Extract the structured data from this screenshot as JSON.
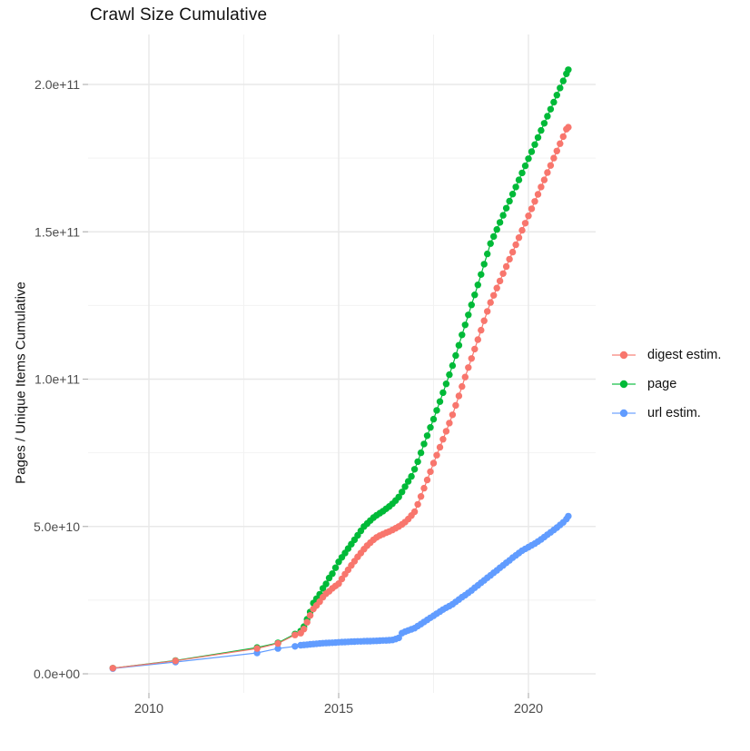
{
  "chart": {
    "title": "Crawl Size Cumulative",
    "ylabel": "Pages / Unique Items Cumulative",
    "xlabel": ""
  },
  "chart_data": {
    "type": "line",
    "title": "Crawl Size Cumulative",
    "xlabel": "",
    "ylabel": "Pages / Unique Items Cumulative",
    "xlim": [
      2008.4,
      2021.75
    ],
    "ylim": [
      0,
      218000000000.0
    ],
    "grid": true,
    "legend_position": "right",
    "x_tick_labels": [
      "2010",
      "2015",
      "2020"
    ],
    "x_ticks": [
      2010,
      2015,
      2020
    ],
    "x_minor_gridlines": [
      2012.5,
      2017.5
    ],
    "y_tick_labels": [
      "0.0e+00",
      "5.0e+10",
      "1.0e+11",
      "1.5e+11",
      "2.0e+11"
    ],
    "y_ticks": [
      0,
      50000000000.0,
      100000000000.0,
      150000000000.0,
      200000000000.0
    ],
    "y_minor_gridlines": [
      25000000000.0,
      75000000000.0,
      125000000000.0,
      175000000000.0
    ],
    "y_unit_of_point_values": 1000000000.0,
    "series": [
      {
        "name": "digest estim.",
        "color": "#F8766D",
        "points": [
          [
            2009.05,
            1.9
          ],
          [
            2010.7,
            4.4
          ],
          [
            2012.85,
            8.6
          ],
          [
            2013.4,
            10.3
          ],
          [
            2013.85,
            13.2
          ],
          [
            2014.0,
            13.8
          ],
          [
            2014.083,
            15.2
          ],
          [
            2014.167,
            17.5
          ],
          [
            2014.25,
            19.8
          ],
          [
            2014.333,
            22
          ],
          [
            2014.417,
            23.2
          ],
          [
            2014.5,
            24.5
          ],
          [
            2014.583,
            26
          ],
          [
            2014.667,
            27.2
          ],
          [
            2014.75,
            28
          ],
          [
            2014.833,
            29
          ],
          [
            2014.917,
            29.8
          ],
          [
            2015.0,
            30.6
          ],
          [
            2015.083,
            32.2
          ],
          [
            2015.167,
            33.8
          ],
          [
            2015.25,
            35.3
          ],
          [
            2015.333,
            36.8
          ],
          [
            2015.417,
            38.2
          ],
          [
            2015.5,
            39.7
          ],
          [
            2015.583,
            41
          ],
          [
            2015.667,
            42.3
          ],
          [
            2015.75,
            43.5
          ],
          [
            2015.833,
            44.5
          ],
          [
            2015.917,
            45.5
          ],
          [
            2016.0,
            46.3
          ],
          [
            2016.083,
            46.9
          ],
          [
            2016.167,
            47.4
          ],
          [
            2016.25,
            47.9
          ],
          [
            2016.333,
            48.3
          ],
          [
            2016.417,
            48.8
          ],
          [
            2016.5,
            49.4
          ],
          [
            2016.583,
            50
          ],
          [
            2016.667,
            50.7
          ],
          [
            2016.75,
            51.5
          ],
          [
            2016.833,
            52.5
          ],
          [
            2016.917,
            53.7
          ],
          [
            2017.0,
            55
          ],
          [
            2017.083,
            57.5
          ],
          [
            2017.167,
            60.2
          ],
          [
            2017.25,
            63
          ],
          [
            2017.333,
            65.8
          ],
          [
            2017.417,
            68.6
          ],
          [
            2017.5,
            71.5
          ],
          [
            2017.583,
            74.2
          ],
          [
            2017.667,
            76.9
          ],
          [
            2017.75,
            79.6
          ],
          [
            2017.833,
            82.3
          ],
          [
            2017.917,
            85.1
          ],
          [
            2018.0,
            87.9
          ],
          [
            2018.083,
            91.1
          ],
          [
            2018.167,
            94.3
          ],
          [
            2018.25,
            97.5
          ],
          [
            2018.333,
            100.7
          ],
          [
            2018.417,
            103.9
          ],
          [
            2018.5,
            107
          ],
          [
            2018.583,
            110.2
          ],
          [
            2018.667,
            113.4
          ],
          [
            2018.75,
            116.6
          ],
          [
            2018.833,
            119.8
          ],
          [
            2018.917,
            123
          ],
          [
            2019.0,
            126
          ],
          [
            2019.083,
            128.4
          ],
          [
            2019.167,
            130.9
          ],
          [
            2019.25,
            133.3
          ],
          [
            2019.333,
            135.8
          ],
          [
            2019.417,
            138.2
          ],
          [
            2019.5,
            140.7
          ],
          [
            2019.583,
            143.1
          ],
          [
            2019.667,
            145.6
          ],
          [
            2019.75,
            148
          ],
          [
            2019.833,
            150.5
          ],
          [
            2019.917,
            152.9
          ],
          [
            2020.0,
            155.4
          ],
          [
            2020.083,
            157.8
          ],
          [
            2020.167,
            160.3
          ],
          [
            2020.25,
            162.7
          ],
          [
            2020.333,
            165.2
          ],
          [
            2020.417,
            167.6
          ],
          [
            2020.5,
            170.1
          ],
          [
            2020.583,
            172.5
          ],
          [
            2020.667,
            175
          ],
          [
            2020.75,
            177.4
          ],
          [
            2020.833,
            179.9
          ],
          [
            2020.917,
            182.3
          ],
          [
            2021.0,
            184.8
          ],
          [
            2021.05,
            185.5
          ]
        ]
      },
      {
        "name": "page",
        "color": "#00BA38",
        "points": [
          [
            2009.05,
            1.9
          ],
          [
            2010.7,
            4.5
          ],
          [
            2012.85,
            8.9
          ],
          [
            2013.4,
            10.5
          ],
          [
            2013.85,
            13.5
          ],
          [
            2014.0,
            14.5
          ],
          [
            2014.083,
            16
          ],
          [
            2014.167,
            18.5
          ],
          [
            2014.25,
            21
          ],
          [
            2014.333,
            24
          ],
          [
            2014.417,
            25.5
          ],
          [
            2014.5,
            27
          ],
          [
            2014.583,
            29
          ],
          [
            2014.667,
            30.5
          ],
          [
            2014.75,
            32.5
          ],
          [
            2014.833,
            34
          ],
          [
            2014.917,
            36
          ],
          [
            2015.0,
            38
          ],
          [
            2015.083,
            39.5
          ],
          [
            2015.167,
            41
          ],
          [
            2015.25,
            42.5
          ],
          [
            2015.333,
            44
          ],
          [
            2015.417,
            45.5
          ],
          [
            2015.5,
            47
          ],
          [
            2015.583,
            48.5
          ],
          [
            2015.667,
            50
          ],
          [
            2015.75,
            51
          ],
          [
            2015.833,
            52
          ],
          [
            2015.917,
            53
          ],
          [
            2016.0,
            53.8
          ],
          [
            2016.083,
            54.5
          ],
          [
            2016.167,
            55.2
          ],
          [
            2016.25,
            56
          ],
          [
            2016.333,
            56.8
          ],
          [
            2016.417,
            57.7
          ],
          [
            2016.5,
            58.8
          ],
          [
            2016.583,
            60
          ],
          [
            2016.667,
            61.7
          ],
          [
            2016.75,
            63.5
          ],
          [
            2016.833,
            65.3
          ],
          [
            2016.917,
            67
          ],
          [
            2017.0,
            69.4
          ],
          [
            2017.083,
            72
          ],
          [
            2017.167,
            75
          ],
          [
            2017.25,
            78
          ],
          [
            2017.333,
            80.8
          ],
          [
            2017.417,
            83.6
          ],
          [
            2017.5,
            86.4
          ],
          [
            2017.583,
            89.4
          ],
          [
            2017.667,
            92.4
          ],
          [
            2017.75,
            95.4
          ],
          [
            2017.833,
            98.4
          ],
          [
            2017.917,
            101.5
          ],
          [
            2018.0,
            104.6
          ],
          [
            2018.083,
            108
          ],
          [
            2018.167,
            111.5
          ],
          [
            2018.25,
            115
          ],
          [
            2018.333,
            118.4
          ],
          [
            2018.417,
            121.8
          ],
          [
            2018.5,
            125.2
          ],
          [
            2018.583,
            128.6
          ],
          [
            2018.667,
            132
          ],
          [
            2018.75,
            135.5
          ],
          [
            2018.833,
            139
          ],
          [
            2018.917,
            142.5
          ],
          [
            2019.0,
            146
          ],
          [
            2019.083,
            148.4
          ],
          [
            2019.167,
            150.8
          ],
          [
            2019.25,
            153.2
          ],
          [
            2019.333,
            155.6
          ],
          [
            2019.417,
            158
          ],
          [
            2019.5,
            160.4
          ],
          [
            2019.583,
            162.8
          ],
          [
            2019.667,
            165.2
          ],
          [
            2019.75,
            167.6
          ],
          [
            2019.833,
            170
          ],
          [
            2019.917,
            172.4
          ],
          [
            2020.0,
            174.8
          ],
          [
            2020.083,
            177.2
          ],
          [
            2020.167,
            179.6
          ],
          [
            2020.25,
            182
          ],
          [
            2020.333,
            184.4
          ],
          [
            2020.417,
            186.8
          ],
          [
            2020.5,
            189.2
          ],
          [
            2020.583,
            191.6
          ],
          [
            2020.667,
            194
          ],
          [
            2020.75,
            196.4
          ],
          [
            2020.833,
            198.8
          ],
          [
            2020.917,
            201.2
          ],
          [
            2021.0,
            203.6
          ],
          [
            2021.05,
            205
          ]
        ]
      },
      {
        "name": "url estim.",
        "color": "#619CFF",
        "points": [
          [
            2009.05,
            1.8
          ],
          [
            2010.7,
            4.0
          ],
          [
            2012.85,
            7.1
          ],
          [
            2013.4,
            8.6
          ],
          [
            2013.85,
            9.3
          ],
          [
            2014.0,
            9.7
          ],
          [
            2014.083,
            9.8
          ],
          [
            2014.167,
            9.9
          ],
          [
            2014.25,
            10.0
          ],
          [
            2014.333,
            10.1
          ],
          [
            2014.417,
            10.2
          ],
          [
            2014.5,
            10.3
          ],
          [
            2014.583,
            10.4
          ],
          [
            2014.667,
            10.45
          ],
          [
            2014.75,
            10.5
          ],
          [
            2014.833,
            10.55
          ],
          [
            2014.917,
            10.6
          ],
          [
            2015.0,
            10.7
          ],
          [
            2015.083,
            10.75
          ],
          [
            2015.167,
            10.8
          ],
          [
            2015.25,
            10.85
          ],
          [
            2015.333,
            10.9
          ],
          [
            2015.417,
            10.95
          ],
          [
            2015.5,
            11.0
          ],
          [
            2015.583,
            11.0
          ],
          [
            2015.667,
            11.05
          ],
          [
            2015.75,
            11.1
          ],
          [
            2015.833,
            11.1
          ],
          [
            2015.917,
            11.15
          ],
          [
            2016.0,
            11.2
          ],
          [
            2016.083,
            11.25
          ],
          [
            2016.167,
            11.3
          ],
          [
            2016.25,
            11.35
          ],
          [
            2016.333,
            11.4
          ],
          [
            2016.417,
            11.5
          ],
          [
            2016.5,
            11.8
          ],
          [
            2016.583,
            12.2
          ],
          [
            2016.667,
            13.8
          ],
          [
            2016.75,
            14.3
          ],
          [
            2016.833,
            14.7
          ],
          [
            2016.917,
            15.1
          ],
          [
            2017.0,
            15.5
          ],
          [
            2017.083,
            16.2
          ],
          [
            2017.167,
            16.9
          ],
          [
            2017.25,
            17.6
          ],
          [
            2017.333,
            18.3
          ],
          [
            2017.417,
            19.0
          ],
          [
            2017.5,
            19.7
          ],
          [
            2017.583,
            20.4
          ],
          [
            2017.667,
            21.1
          ],
          [
            2017.75,
            21.8
          ],
          [
            2017.833,
            22.4
          ],
          [
            2017.917,
            23.0
          ],
          [
            2018.0,
            23.6
          ],
          [
            2018.083,
            24.4
          ],
          [
            2018.167,
            25.2
          ],
          [
            2018.25,
            26.0
          ],
          [
            2018.333,
            26.7
          ],
          [
            2018.417,
            27.5
          ],
          [
            2018.5,
            28.3
          ],
          [
            2018.583,
            29.2
          ],
          [
            2018.667,
            30.0
          ],
          [
            2018.75,
            30.9
          ],
          [
            2018.833,
            31.7
          ],
          [
            2018.917,
            32.6
          ],
          [
            2019.0,
            33.4
          ],
          [
            2019.083,
            34.3
          ],
          [
            2019.167,
            35.1
          ],
          [
            2019.25,
            36.0
          ],
          [
            2019.333,
            36.8
          ],
          [
            2019.417,
            37.7
          ],
          [
            2019.5,
            38.5
          ],
          [
            2019.583,
            39.4
          ],
          [
            2019.667,
            40.2
          ],
          [
            2019.75,
            41.0
          ],
          [
            2019.833,
            41.8
          ],
          [
            2019.917,
            42.4
          ],
          [
            2020.0,
            43.0
          ],
          [
            2020.083,
            43.6
          ],
          [
            2020.167,
            44.2
          ],
          [
            2020.25,
            44.9
          ],
          [
            2020.333,
            45.6
          ],
          [
            2020.417,
            46.4
          ],
          [
            2020.5,
            47.2
          ],
          [
            2020.583,
            48.0
          ],
          [
            2020.667,
            48.8
          ],
          [
            2020.75,
            49.6
          ],
          [
            2020.833,
            50.5
          ],
          [
            2020.917,
            51.4
          ],
          [
            2021.0,
            52.5
          ],
          [
            2021.05,
            53.5
          ]
        ]
      }
    ]
  }
}
